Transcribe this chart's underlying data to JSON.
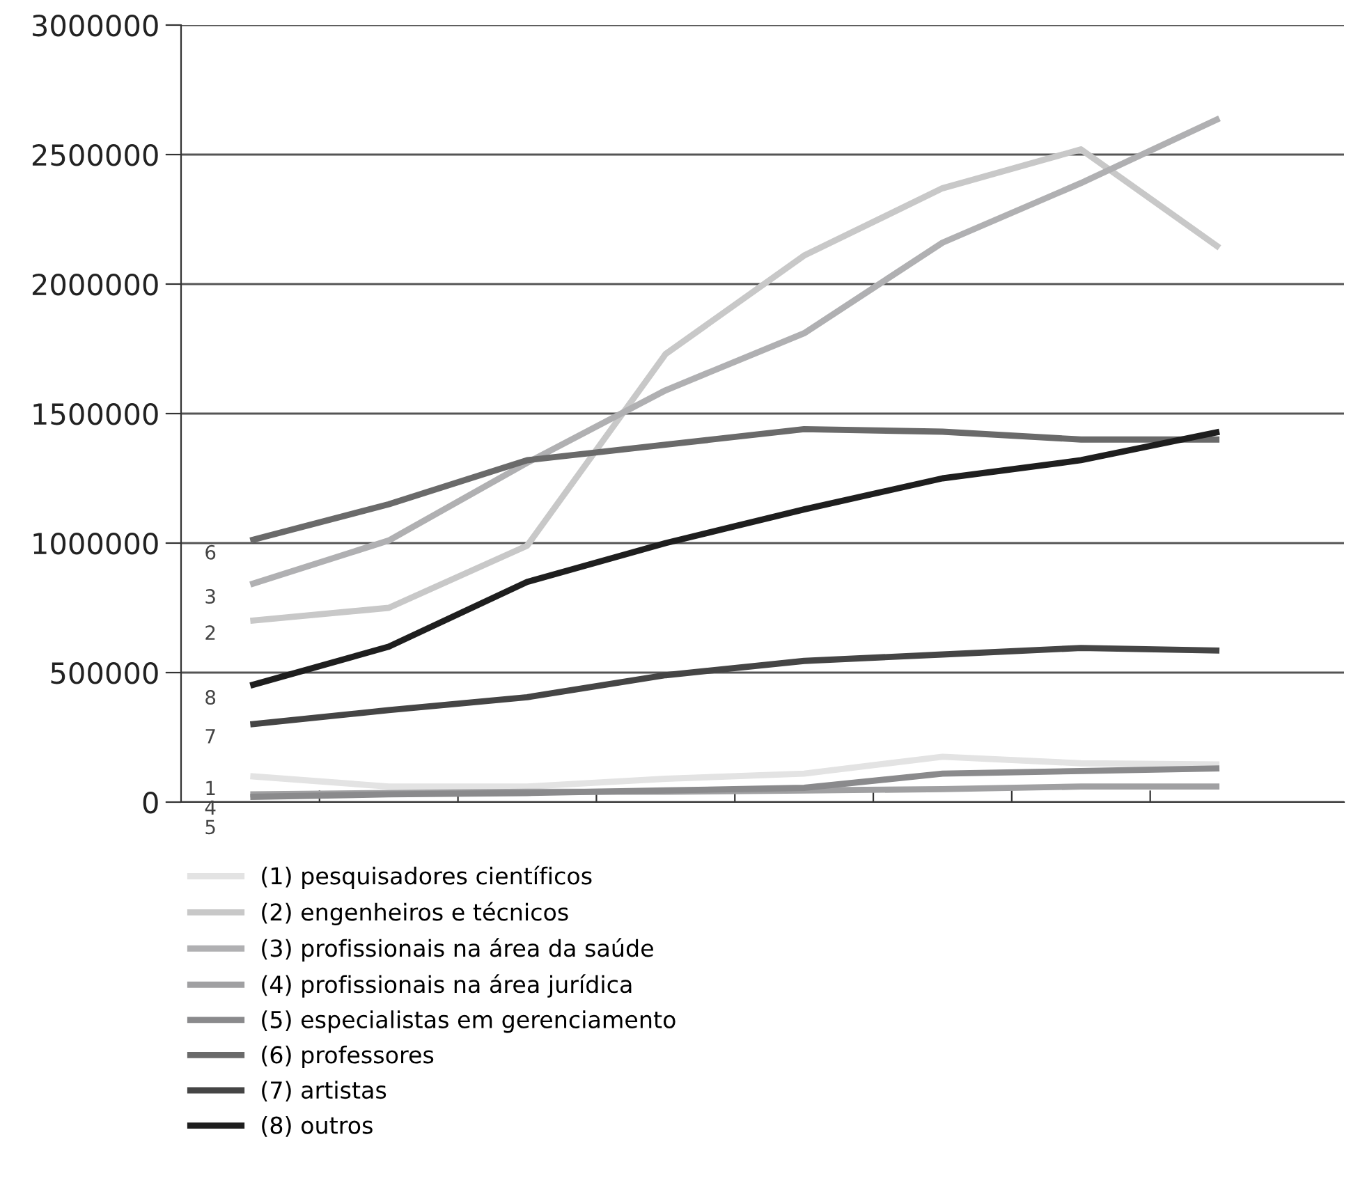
{
  "chart_data": {
    "type": "line",
    "categories": [
      null,
      null,
      null,
      null,
      null,
      null,
      null,
      null
    ],
    "series": [
      {
        "name": "(1) pesquisadores científicos",
        "color": "#e3e3e3",
        "values": [
          100000,
          60000,
          60000,
          90000,
          110000,
          175000,
          150000,
          145000
        ]
      },
      {
        "name": "(2) engenheiros e técnicos",
        "color": "#c8c8c8",
        "values": [
          700000,
          750000,
          990000,
          1730000,
          2110000,
          2370000,
          2520000,
          2140000
        ]
      },
      {
        "name": "(3) profissionais na área da saúde",
        "color": "#b0b0b2",
        "values": [
          840000,
          1010000,
          1310000,
          1590000,
          1810000,
          2160000,
          2390000,
          2640000
        ]
      },
      {
        "name": "(4) profissionais na área jurídica",
        "color": "#a0a0a2",
        "values": [
          30000,
          35000,
          40000,
          40000,
          45000,
          50000,
          60000,
          60000
        ]
      },
      {
        "name": "(5) especialistas em gerenciamento",
        "color": "#8a8a8c",
        "values": [
          20000,
          30000,
          35000,
          45000,
          55000,
          110000,
          120000,
          130000
        ]
      },
      {
        "name": "(6) professores",
        "color": "#6a6a6a",
        "values": [
          1010000,
          1150000,
          1320000,
          1380000,
          1440000,
          1430000,
          1400000,
          1400000
        ]
      },
      {
        "name": "(7) artistas",
        "color": "#454545",
        "values": [
          300000,
          355000,
          405000,
          490000,
          545000,
          570000,
          595000,
          585000
        ]
      },
      {
        "name": "(8) outros",
        "color": "#1e1e1e",
        "values": [
          450000,
          600000,
          850000,
          1000000,
          1130000,
          1250000,
          1320000,
          1430000
        ]
      }
    ],
    "annotations": [
      "6",
      "3",
      "2",
      "8",
      "7",
      "1",
      "4",
      "5"
    ],
    "ylim": [
      0,
      3000000
    ],
    "yticks": [
      0,
      500000,
      1000000,
      1500000,
      2000000,
      2500000,
      3000000
    ],
    "grid": "y",
    "legend": "bottom",
    "marker": "none",
    "line_style": "solid"
  }
}
